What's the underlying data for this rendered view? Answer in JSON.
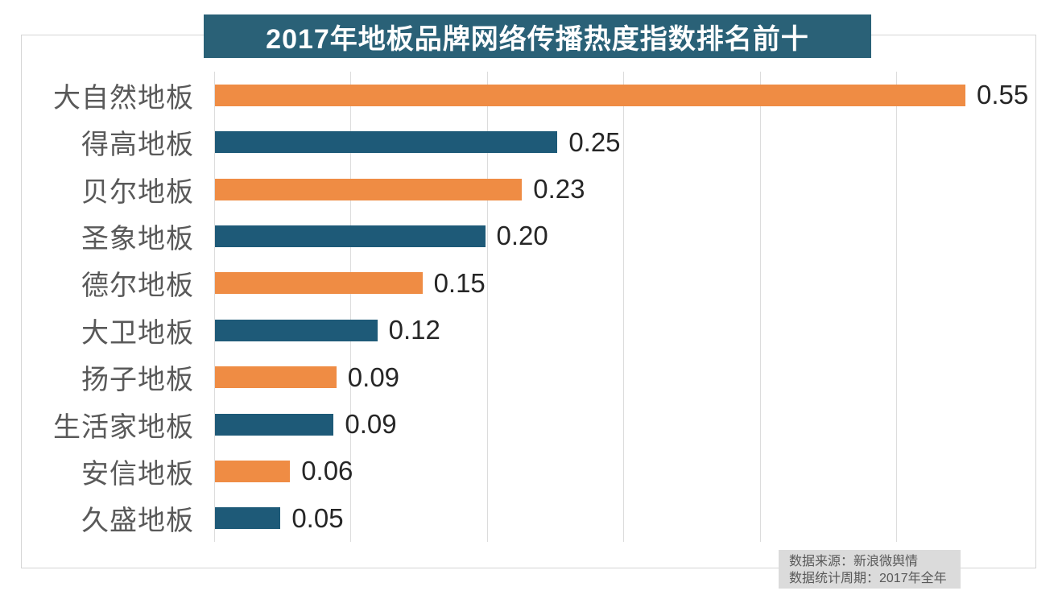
{
  "title": {
    "text": "2017年地板品牌网络传播热度指数排名前十",
    "bg_color": "#2A6177",
    "text_color": "#FFFFFF"
  },
  "chart_data": {
    "type": "bar",
    "orientation": "horizontal",
    "title": "2017年地板品牌网络传播热度指数排名前十",
    "categories": [
      "大自然地板",
      "得高地板",
      "贝尔地板",
      "圣象地板",
      "德尔地板",
      "大卫地板",
      "扬子地板",
      "生活家地板",
      "安信地板",
      "久盛地板"
    ],
    "values": [
      0.55,
      0.25,
      0.23,
      0.2,
      0.15,
      0.12,
      0.09,
      0.09,
      0.06,
      0.05
    ],
    "value_labels": [
      "0.55",
      "0.25",
      "0.23",
      "0.20",
      "0.15",
      "0.12",
      "0.09",
      "0.09",
      "0.06",
      "0.05"
    ],
    "bar_lengths_measured": [
      0.55,
      0.251,
      0.225,
      0.198,
      0.152,
      0.119,
      0.089,
      0.087,
      0.055,
      0.048
    ],
    "xlim": [
      0,
      0.6
    ],
    "grid_step": 0.1,
    "grid": true,
    "legend": null,
    "xlabel": "",
    "ylabel": "",
    "bar_colors": {
      "odd_rows": "#EF8C44",
      "even_rows": "#1E5A78"
    },
    "gridline_color": "#DCDCDC"
  },
  "source_note": {
    "lines": [
      "数据来源：新浪微舆情",
      "数据统计周期：2017年全年"
    ],
    "bg_color": "#DBDBDB",
    "text_color": "#595959"
  }
}
